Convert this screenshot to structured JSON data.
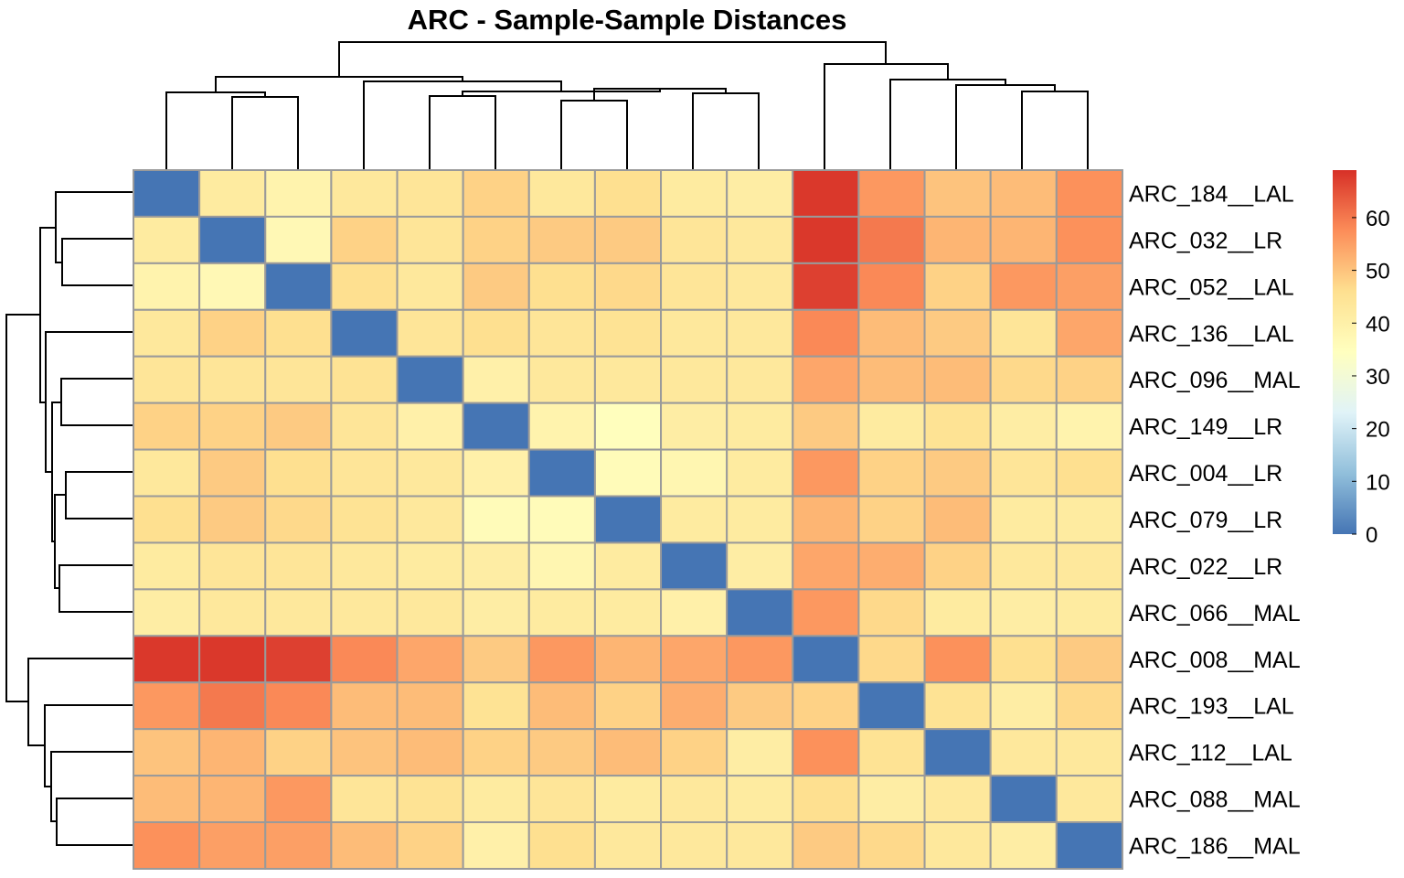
{
  "chart_data": {
    "type": "heatmap",
    "title": "ARC - Sample-Sample Distances",
    "row_labels": [
      "ARC_184__LAL",
      "ARC_032__LR",
      "ARC_052__LAL",
      "ARC_136__LAL",
      "ARC_096__MAL",
      "ARC_149__LR",
      "ARC_004__LR",
      "ARC_079__LR",
      "ARC_022__LR",
      "ARC_066__MAL",
      "ARC_008__MAL",
      "ARC_193__LAL",
      "ARC_112__LAL",
      "ARC_088__MAL",
      "ARC_186__MAL"
    ],
    "values": [
      [
        0,
        42,
        39,
        43,
        44,
        48,
        43,
        46,
        42,
        41,
        68,
        56,
        50,
        51,
        57
      ],
      [
        42,
        0,
        37,
        48,
        44,
        48,
        49,
        49,
        44,
        43,
        68,
        60,
        52,
        52,
        57
      ],
      [
        39,
        37,
        0,
        46,
        43,
        49,
        46,
        47,
        44,
        43,
        67,
        58,
        48,
        56,
        55
      ],
      [
        43,
        48,
        46,
        0,
        44,
        46,
        44,
        45,
        43,
        43,
        58,
        51,
        49,
        44,
        54
      ],
      [
        44,
        44,
        44,
        45,
        0,
        40,
        43,
        43,
        43,
        43,
        54,
        51,
        51,
        47,
        48
      ],
      [
        48,
        48,
        49,
        44,
        40,
        0,
        39,
        35,
        41,
        42,
        49,
        42,
        45,
        41,
        39
      ],
      [
        43,
        49,
        46,
        44,
        43,
        40,
        0,
        36,
        38,
        42,
        56,
        48,
        49,
        44,
        46
      ],
      [
        46,
        49,
        47,
        45,
        43,
        36,
        36,
        0,
        42,
        42,
        52,
        48,
        51,
        42,
        42
      ],
      [
        42,
        44,
        44,
        43,
        42,
        41,
        38,
        42,
        0,
        41,
        54,
        53,
        48,
        43,
        43
      ],
      [
        41,
        43,
        43,
        43,
        43,
        41,
        42,
        42,
        40,
        0,
        56,
        47,
        42,
        41,
        42
      ],
      [
        68,
        68,
        67,
        58,
        54,
        49,
        56,
        52,
        54,
        56,
        0,
        47,
        57,
        46,
        49
      ],
      [
        56,
        60,
        58,
        51,
        51,
        45,
        51,
        48,
        53,
        49,
        48,
        0,
        45,
        41,
        47
      ],
      [
        50,
        52,
        48,
        50,
        51,
        48,
        49,
        51,
        48,
        41,
        57,
        45,
        0,
        43,
        43
      ],
      [
        51,
        52,
        56,
        44,
        45,
        42,
        44,
        42,
        43,
        42,
        46,
        41,
        43,
        0,
        43
      ],
      [
        57,
        55,
        55,
        51,
        48,
        40,
        46,
        43,
        43,
        43,
        49,
        47,
        43,
        41,
        0
      ]
    ],
    "colorbar": {
      "ticks": [
        0,
        10,
        20,
        30,
        40,
        50,
        60
      ],
      "min": 0,
      "max": 69
    },
    "colors": [
      "#4575B4",
      "#91BFDB",
      "#E0F3F8",
      "#FFFFBF",
      "#FEE090",
      "#FC8D59",
      "#D73027"
    ],
    "grid": true,
    "legend_position": "right",
    "dendrogram": "rows-and-columns"
  }
}
